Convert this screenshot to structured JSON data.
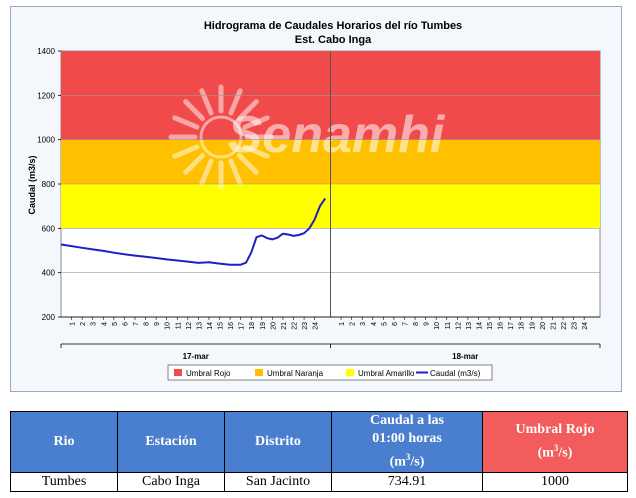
{
  "chart_data": {
    "type": "line",
    "title": "Hidrograma de Caudales Horarios del río Tumbes",
    "subtitle": "Est. Cabo Inga",
    "ylabel": "Caudal  (m3/s)",
    "ylim": [
      200,
      1400
    ],
    "yticks": [
      200,
      400,
      600,
      800,
      1000,
      1200,
      1400
    ],
    "x_hours": [
      "1",
      "2",
      "3",
      "4",
      "5",
      "6",
      "7",
      "8",
      "9",
      "10",
      "11",
      "12",
      "13",
      "14",
      "15",
      "16",
      "17",
      "18",
      "19",
      "20",
      "21",
      "22",
      "23",
      "24"
    ],
    "days": [
      "17-mar",
      "18-mar"
    ],
    "watermark": "Senamhi",
    "bands": [
      {
        "name": "Umbral Amarillo",
        "from": 600,
        "to": 800,
        "color": "#ffff00"
      },
      {
        "name": "Umbral Naranja",
        "from": 800,
        "to": 1000,
        "color": "#ffc000"
      },
      {
        "name": "Umbral Rojo",
        "from": 1000,
        "to": 1400,
        "color": "#f14a4a"
      }
    ],
    "legend": [
      {
        "label": "Umbral Rojo",
        "kind": "box",
        "color": "#f14a4a"
      },
      {
        "label": "Umbral Naranja",
        "kind": "box",
        "color": "#ffc000"
      },
      {
        "label": "Umbral Amarillo",
        "kind": "box",
        "color": "#ffff00"
      },
      {
        "label": "Caudal (m3/s)",
        "kind": "line",
        "color": "#1f1fc8"
      }
    ],
    "series": [
      {
        "name": "Caudal (m3/s)",
        "color": "#1f1fc8",
        "x": [
          0,
          1,
          2,
          3,
          4,
          5,
          6,
          7,
          8,
          9,
          10,
          11,
          12,
          13,
          14,
          15,
          16,
          17,
          17.5,
          18,
          18.5,
          19,
          19.5,
          20,
          20.5,
          21,
          21.5,
          22,
          22.5,
          23,
          23.5,
          24,
          24.5,
          25
        ],
        "values": [
          527,
          520,
          512,
          505,
          498,
          490,
          483,
          477,
          472,
          466,
          460,
          455,
          450,
          444,
          447,
          441,
          436,
          436,
          445,
          490,
          560,
          568,
          556,
          550,
          558,
          576,
          572,
          566,
          570,
          578,
          600,
          640,
          700,
          735
        ]
      }
    ]
  },
  "table": {
    "headers": [
      "Rio",
      "Estación",
      "Distrito",
      "Caudal a las 01:00 horas (m3/s)",
      "Umbral Rojo (m3/s)"
    ],
    "header_lines": {
      "caudal_1": "Caudal a las",
      "caudal_2": "01:00 horas",
      "caudal_3": "(m",
      "caudal_sup": "3",
      "caudal_4": "/s)",
      "umbral_1": "Umbral Rojo",
      "umbral_2": "(m",
      "umbral_sup": "3",
      "umbral_3": "/s)"
    },
    "row": [
      "Tumbes",
      "Cabo Inga",
      "San Jacinto",
      "734.91",
      "1000"
    ],
    "header_colors": {
      "blue": "#4a7fcf",
      "red": "#f25c5c"
    }
  }
}
